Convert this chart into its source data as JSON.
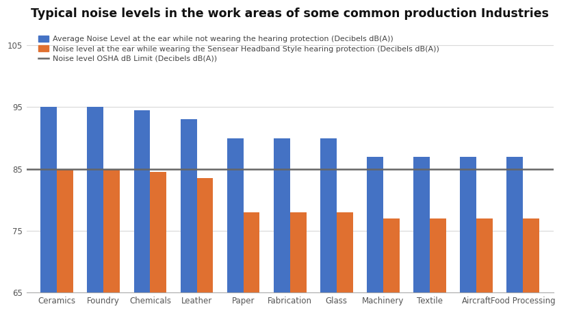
{
  "title": "Typical noise levels in the work areas of some common production Industries",
  "categories": [
    "Ceramics",
    "Foundry",
    "Chemicals",
    "Leather",
    "Paper",
    "Fabrication",
    "Glass",
    "Machinery",
    "Textile",
    "Aircraft",
    "Food Processing"
  ],
  "blue_values": [
    95,
    95,
    94.5,
    93,
    90,
    90,
    90,
    87,
    87,
    87,
    87
  ],
  "orange_values": [
    85,
    85,
    84.5,
    83.5,
    78,
    78,
    78,
    77,
    77,
    77,
    77
  ],
  "osha_limit": 85,
  "ylim": [
    65,
    108
  ],
  "yticks": [
    65,
    75,
    85,
    95,
    105
  ],
  "bar_color_blue": "#4472C4",
  "bar_color_orange": "#E07030",
  "osha_line_color": "#666666",
  "background_color": "#FFFFFF",
  "grid_color": "#D9D9D9",
  "legend_label_blue": "Average Noise Level at the ear while not wearing the hearing protection (Decibels dB(A))",
  "legend_label_orange": "Noise level at the ear while wearing the Sensear Headband Style hearing protection (Decibels dB(A))",
  "legend_label_line": "Noise level OSHA dB Limit (Decibels dB(A))",
  "title_fontsize": 12.5,
  "legend_fontsize": 8,
  "tick_fontsize": 8.5
}
